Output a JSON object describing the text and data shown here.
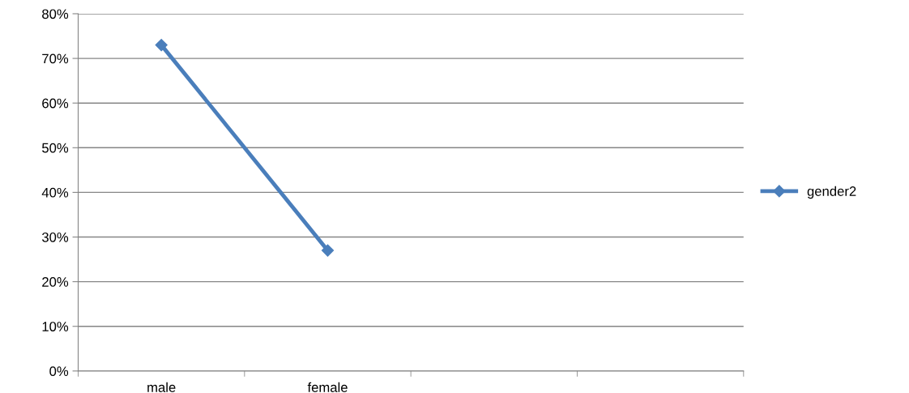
{
  "chart_data": {
    "type": "line",
    "categories": [
      "male",
      "female",
      null,
      null
    ],
    "series": [
      {
        "name": "gender2",
        "color": "#4a7ebb",
        "values": [
          73,
          27,
          null,
          null
        ]
      }
    ],
    "ylim": [
      0,
      80
    ],
    "yticks": [
      {
        "value": 0,
        "label": "0%"
      },
      {
        "value": 10,
        "label": "10%"
      },
      {
        "value": 20,
        "label": "20%"
      },
      {
        "value": 30,
        "label": "30%"
      },
      {
        "value": 40,
        "label": "40%"
      },
      {
        "value": 50,
        "label": "50%"
      },
      {
        "value": 60,
        "label": "60%"
      },
      {
        "value": 70,
        "label": "70%"
      },
      {
        "value": 80,
        "label": "80%"
      }
    ],
    "grid": "y",
    "legend": "right",
    "marker": "diamond",
    "line_style": "solid"
  }
}
